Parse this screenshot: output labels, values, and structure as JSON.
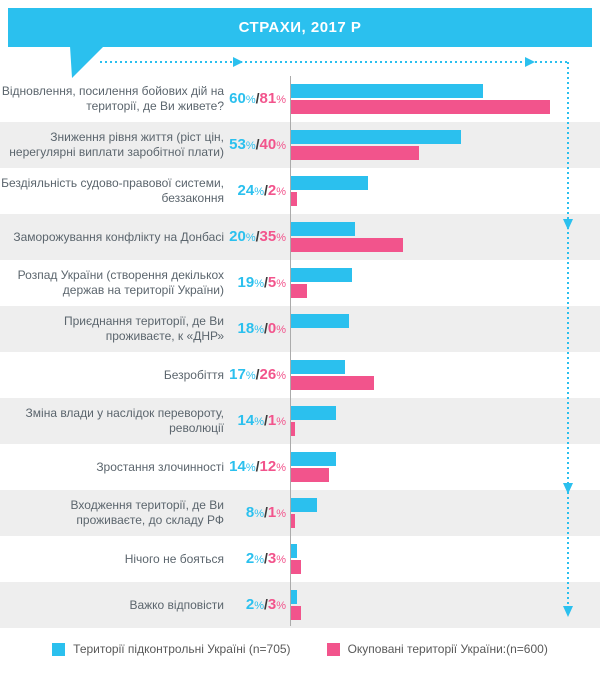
{
  "header": {
    "title": "СТРАХИ, 2017 Р"
  },
  "colors": {
    "cyan": "#2BC0EE",
    "pink": "#F2548C",
    "row_alt": "#EEEEEE",
    "label": "#5B656D",
    "slash": "#3A3A3A",
    "axis": "#ABABAB",
    "legend_text": "#595959",
    "banner_text": "#FFFFFF"
  },
  "chart_data": {
    "type": "bar",
    "orientation": "horizontal",
    "title": "СТРАХИ, 2017 Р",
    "unit_symbol": "%",
    "value_separator": "/",
    "xlim": [
      0,
      87
    ],
    "grid": false,
    "legend_position": "bottom",
    "categories": [
      "Відновлення, посилення бойових дій на території, де Ви живете?",
      "Зниження рівня життя (ріст цін, нерегулярні виплати заробітної плати)",
      "Бездіяльність судово-правової системи, беззаконня",
      "Заморожування конфлікту на Донбасі",
      "Розпад України (створення декількох держав на території України)",
      "Приєднання території, де Ви проживаєте, к «ДНР»",
      "Безробіття",
      "Зміна влади у наслідок перевороту, революції",
      "Зростання  злочинності",
      "Входження території, де Ви проживаєте, до складу РФ",
      "Нічого не бояться",
      "Важко відповісти"
    ],
    "series": [
      {
        "name": "Території підконтрольні Україні (n=705)",
        "color": "#2BC0EE",
        "values": [
          60,
          53,
          24,
          20,
          19,
          18,
          17,
          14,
          14,
          8,
          2,
          2
        ]
      },
      {
        "name": "Окуповані території України:(n=600)",
        "color": "#F2548C",
        "values": [
          81,
          40,
          2,
          35,
          5,
          0,
          26,
          1,
          12,
          1,
          3,
          3
        ]
      }
    ],
    "value_labels": [
      "60%/81%",
      "53%/40%",
      "24%/2%",
      "20%/35%",
      "19%/5%",
      "18%/0%",
      "17%/26%",
      "14%/1%",
      "14%/12%",
      "8%/1%",
      "2%/3%",
      "2%/3%"
    ]
  },
  "legend": {
    "items": [
      {
        "label": "Території підконтрольні Україні (n=705)",
        "color": "#2BC0EE"
      },
      {
        "label": "Окуповані території України:(n=600)",
        "color": "#F2548C"
      }
    ]
  }
}
